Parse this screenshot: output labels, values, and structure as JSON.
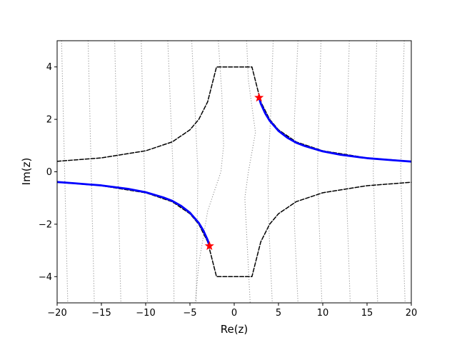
{
  "chart_data": {
    "type": "line",
    "title": "",
    "xlabel": "Re(z)",
    "ylabel": "Im(z)",
    "xlim": [
      -20,
      20
    ],
    "ylim": [
      -5,
      5
    ],
    "grid": false,
    "legend": "none",
    "x_ticks": [
      -20,
      -15,
      -10,
      -5,
      0,
      5,
      10,
      15,
      20
    ],
    "x_tick_labels": [
      "−20",
      "−15",
      "−10",
      "−5",
      "0",
      "5",
      "10",
      "15",
      "20"
    ],
    "y_ticks": [
      -4,
      -2,
      0,
      2,
      4
    ],
    "y_tick_labels": [
      "−4",
      "−2",
      "0",
      "2",
      "4"
    ],
    "series": [
      {
        "style": "dashed",
        "color": "#000000",
        "x": [
          -20,
          -15,
          -10,
          -7,
          -5,
          -4,
          -3,
          -2,
          2,
          3,
          4,
          5,
          7,
          10,
          15,
          20
        ],
        "y": [
          0.4,
          0.53,
          0.8,
          1.14,
          1.6,
          2.0,
          2.67,
          4.0,
          4.0,
          2.67,
          2.0,
          1.6,
          1.14,
          0.8,
          0.53,
          0.4
        ]
      },
      {
        "style": "dashed",
        "color": "#000000",
        "x": [
          -20,
          -15,
          -10,
          -7,
          -5,
          -4,
          -3,
          -2,
          2,
          3,
          4,
          5,
          7,
          10,
          15,
          20
        ],
        "y": [
          -0.4,
          -0.53,
          -0.8,
          -1.14,
          -1.6,
          -2.0,
          -2.67,
          -4.0,
          -4.0,
          -2.67,
          -2.0,
          -1.6,
          -1.14,
          -0.8,
          -0.53,
          -0.4
        ]
      },
      {
        "style": "solid",
        "color": "#0000ff",
        "x": [
          2.8,
          3,
          3.5,
          4,
          5,
          6,
          7,
          8,
          10,
          12,
          15,
          18,
          20
        ],
        "y": [
          2.83,
          2.6,
          2.23,
          1.95,
          1.56,
          1.3,
          1.11,
          0.98,
          0.78,
          0.65,
          0.52,
          0.44,
          0.39
        ]
      },
      {
        "style": "solid",
        "color": "#0000ff",
        "x": [
          -20,
          -18,
          -15,
          -12,
          -10,
          -8,
          -7,
          -6,
          -5,
          -4,
          -3.5,
          -3,
          -2.8
        ],
        "y": [
          -0.39,
          -0.44,
          -0.52,
          -0.65,
          -0.78,
          -0.98,
          -1.11,
          -1.3,
          -1.56,
          -1.95,
          -2.23,
          -2.6,
          -2.83
        ]
      }
    ],
    "markers": [
      {
        "x": 2.8,
        "y": 2.83,
        "color": "#ff0000",
        "shape": "star"
      },
      {
        "x": -2.8,
        "y": -2.83,
        "color": "#ff0000",
        "shape": "star"
      }
    ],
    "dotted_lines": [
      {
        "color": "#808080",
        "x": [
          -19.5,
          -18.8
        ],
        "y": [
          5,
          -5
        ]
      },
      {
        "color": "#808080",
        "x": [
          -16.5,
          -15.8
        ],
        "y": [
          5,
          -5
        ]
      },
      {
        "color": "#808080",
        "x": [
          -13.5,
          -12.8
        ],
        "y": [
          5,
          -5
        ]
      },
      {
        "color": "#808080",
        "x": [
          -10.5,
          -9.8
        ],
        "y": [
          5,
          -5
        ]
      },
      {
        "color": "#808080",
        "x": [
          -7.5,
          -6.9,
          -6.8
        ],
        "y": [
          5,
          0,
          -5
        ]
      },
      {
        "color": "#808080",
        "x": [
          -4.8,
          -4.1,
          -4.3
        ],
        "y": [
          5,
          0,
          -5
        ]
      },
      {
        "color": "#808080",
        "x": [
          -1.8,
          -1.4,
          -1.2,
          -1.5,
          -3.0,
          -4.0,
          -4.4
        ],
        "y": [
          5,
          3,
          1,
          0,
          -1.5,
          -3.5,
          -5
        ]
      },
      {
        "color": "#808080",
        "x": [
          1.4,
          1.6,
          2.4,
          1.6,
          1.2,
          1.5,
          1.8
        ],
        "y": [
          5,
          3.5,
          1.5,
          0,
          -1,
          -3,
          -5
        ]
      },
      {
        "color": "#808080",
        "x": [
          4.4,
          4.1,
          3.8,
          3.9,
          4.3
        ],
        "y": [
          5,
          2,
          0,
          -2,
          -5
        ]
      },
      {
        "color": "#808080",
        "x": [
          7.2,
          6.8,
          6.8,
          7.2
        ],
        "y": [
          5,
          2,
          -2,
          -5
        ]
      },
      {
        "color": "#808080",
        "x": [
          9.8,
          9.4,
          9.9
        ],
        "y": [
          5,
          0,
          -5
        ]
      },
      {
        "color": "#808080",
        "x": [
          13.0,
          12.6,
          13.1
        ],
        "y": [
          5,
          0,
          -5
        ]
      },
      {
        "color": "#808080",
        "x": [
          16.1,
          15.7,
          16.2
        ],
        "y": [
          5,
          0,
          -5
        ]
      },
      {
        "color": "#808080",
        "x": [
          19.2,
          18.8,
          19.3
        ],
        "y": [
          5,
          0,
          -5
        ]
      }
    ]
  }
}
